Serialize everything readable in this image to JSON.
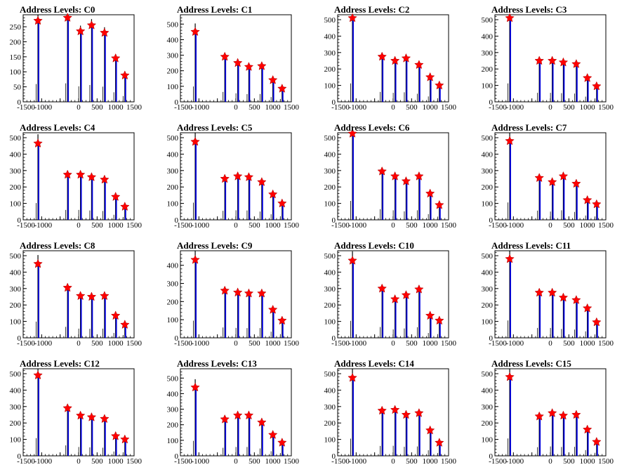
{
  "colors": {
    "blue": "#0000dd",
    "marker": "#ff0000",
    "axis": "#000000"
  },
  "chart_data": [
    {
      "type": "histogram",
      "title": "Address Levels: C0",
      "xlim": [
        -1500,
        1500
      ],
      "ylim": [
        0,
        290
      ],
      "xticks": [
        "-1500",
        "-1000",
        "0",
        "500",
        "1000",
        "1500"
      ],
      "yticks": [
        0,
        50,
        100,
        150,
        200,
        250
      ],
      "peaks": [
        [
          -1100,
          270
        ],
        [
          -300,
          280
        ],
        [
          50,
          235
        ],
        [
          350,
          255
        ],
        [
          700,
          230
        ],
        [
          1000,
          145
        ],
        [
          1250,
          88
        ]
      ]
    },
    {
      "type": "histogram",
      "title": "Address Levels: C1",
      "xlim": [
        -1500,
        1500
      ],
      "ylim": [
        0,
        560
      ],
      "xticks": [
        "-1500",
        "-1000",
        "0",
        "500",
        "1000",
        "1500"
      ],
      "yticks": [
        0,
        100,
        200,
        300,
        400,
        500
      ],
      "peaks": [
        [
          -1100,
          450
        ],
        [
          -300,
          290
        ],
        [
          50,
          250
        ],
        [
          350,
          225
        ],
        [
          700,
          230
        ],
        [
          1000,
          140
        ],
        [
          1250,
          85
        ]
      ]
    },
    {
      "type": "histogram",
      "title": "Address Levels: C2",
      "xlim": [
        -1500,
        1500
      ],
      "ylim": [
        0,
        530
      ],
      "xticks": [
        "-1500",
        "-1000",
        "0",
        "500",
        "1000",
        "1500"
      ],
      "yticks": [
        0,
        100,
        200,
        300,
        400,
        500
      ],
      "peaks": [
        [
          -1100,
          510
        ],
        [
          -300,
          275
        ],
        [
          50,
          250
        ],
        [
          350,
          265
        ],
        [
          700,
          225
        ],
        [
          1000,
          150
        ],
        [
          1250,
          100
        ]
      ]
    },
    {
      "type": "histogram",
      "title": "Address Levels: C3",
      "xlim": [
        -1500,
        1500
      ],
      "ylim": [
        0,
        530
      ],
      "xticks": [
        "-1500",
        "-1000",
        "0",
        "500",
        "1000",
        "1500"
      ],
      "yticks": [
        0,
        100,
        200,
        300,
        400,
        500
      ],
      "peaks": [
        [
          -1100,
          510
        ],
        [
          -300,
          250
        ],
        [
          50,
          250
        ],
        [
          350,
          240
        ],
        [
          700,
          230
        ],
        [
          1000,
          145
        ],
        [
          1250,
          95
        ]
      ]
    },
    {
      "type": "histogram",
      "title": "Address Levels: C4",
      "xlim": [
        -1500,
        1500
      ],
      "ylim": [
        0,
        530
      ],
      "xticks": [
        "-1500",
        "-1000",
        "0",
        "500",
        "1000",
        "1500"
      ],
      "yticks": [
        0,
        100,
        200,
        300,
        400,
        500
      ],
      "peaks": [
        [
          -1100,
          465
        ],
        [
          -300,
          275
        ],
        [
          50,
          275
        ],
        [
          350,
          260
        ],
        [
          700,
          245
        ],
        [
          1000,
          140
        ],
        [
          1250,
          80
        ]
      ]
    },
    {
      "type": "histogram",
      "title": "Address Levels: C5",
      "xlim": [
        -1500,
        1500
      ],
      "ylim": [
        0,
        530
      ],
      "xticks": [
        "-1500",
        "-1000",
        "0",
        "500",
        "1000",
        "1500"
      ],
      "yticks": [
        0,
        100,
        200,
        300,
        400,
        500
      ],
      "peaks": [
        [
          -1100,
          475
        ],
        [
          -300,
          250
        ],
        [
          50,
          265
        ],
        [
          350,
          260
        ],
        [
          700,
          230
        ],
        [
          1000,
          155
        ],
        [
          1250,
          100
        ]
      ]
    },
    {
      "type": "histogram",
      "title": "Address Levels: C6",
      "xlim": [
        -1500,
        1500
      ],
      "ylim": [
        0,
        530
      ],
      "xticks": [
        "-1500",
        "-1000",
        "0",
        "500",
        "1000",
        "1500"
      ],
      "yticks": [
        0,
        100,
        200,
        300,
        400,
        500
      ],
      "peaks": [
        [
          -1100,
          525
        ],
        [
          -300,
          295
        ],
        [
          50,
          265
        ],
        [
          350,
          235
        ],
        [
          700,
          265
        ],
        [
          1000,
          160
        ],
        [
          1250,
          90
        ]
      ]
    },
    {
      "type": "histogram",
      "title": "Address Levels: C7",
      "xlim": [
        -1500,
        1500
      ],
      "ylim": [
        0,
        530
      ],
      "xticks": [
        "-1500",
        "-1000",
        "0",
        "500",
        "1000",
        "1500"
      ],
      "yticks": [
        0,
        100,
        200,
        300,
        400,
        500
      ],
      "peaks": [
        [
          -1100,
          480
        ],
        [
          -300,
          255
        ],
        [
          50,
          230
        ],
        [
          350,
          265
        ],
        [
          700,
          220
        ],
        [
          1000,
          120
        ],
        [
          1250,
          95
        ]
      ]
    },
    {
      "type": "histogram",
      "title": "Address Levels: C8",
      "xlim": [
        -1500,
        1500
      ],
      "ylim": [
        0,
        530
      ],
      "xticks": [
        "-1500",
        "-1000",
        "0",
        "500",
        "1000",
        "1500"
      ],
      "yticks": [
        0,
        100,
        200,
        300,
        400,
        500
      ],
      "peaks": [
        [
          -1100,
          450
        ],
        [
          -300,
          305
        ],
        [
          50,
          255
        ],
        [
          350,
          250
        ],
        [
          700,
          255
        ],
        [
          1000,
          135
        ],
        [
          1250,
          80
        ]
      ]
    },
    {
      "type": "histogram",
      "title": "Address Levels: C9",
      "xlim": [
        -1500,
        1500
      ],
      "ylim": [
        0,
        480
      ],
      "xticks": [
        "-1500",
        "-1000",
        "0",
        "500",
        "1000",
        "1500"
      ],
      "yticks": [
        0,
        100,
        200,
        300,
        400
      ],
      "peaks": [
        [
          -1100,
          430
        ],
        [
          -300,
          260
        ],
        [
          50,
          250
        ],
        [
          350,
          245
        ],
        [
          700,
          245
        ],
        [
          1000,
          155
        ],
        [
          1250,
          95
        ]
      ]
    },
    {
      "type": "histogram",
      "title": "Address Levels: C10",
      "xlim": [
        -1500,
        1500
      ],
      "ylim": [
        0,
        530
      ],
      "xticks": [
        "-1500",
        "-1000",
        "0",
        "500",
        "1000",
        "1500"
      ],
      "yticks": [
        0,
        100,
        200,
        300,
        400,
        500
      ],
      "peaks": [
        [
          -1100,
          470
        ],
        [
          -300,
          300
        ],
        [
          50,
          235
        ],
        [
          350,
          260
        ],
        [
          700,
          295
        ],
        [
          1000,
          135
        ],
        [
          1250,
          105
        ]
      ]
    },
    {
      "type": "histogram",
      "title": "Address Levels: C11",
      "xlim": [
        -1500,
        1500
      ],
      "ylim": [
        0,
        530
      ],
      "xticks": [
        "-1500",
        "-1000",
        "0",
        "500",
        "1000",
        "1500"
      ],
      "yticks": [
        0,
        100,
        200,
        300,
        400,
        500
      ],
      "peaks": [
        [
          -1100,
          480
        ],
        [
          -300,
          275
        ],
        [
          50,
          275
        ],
        [
          350,
          245
        ],
        [
          700,
          230
        ],
        [
          1000,
          180
        ],
        [
          1250,
          95
        ]
      ]
    },
    {
      "type": "histogram",
      "title": "Address Levels: C12",
      "xlim": [
        -1500,
        1500
      ],
      "ylim": [
        0,
        530
      ],
      "xticks": [
        "-1500",
        "-1000",
        "0",
        "500",
        "1000",
        "1500"
      ],
      "yticks": [
        0,
        100,
        200,
        300,
        400,
        500
      ],
      "peaks": [
        [
          -1100,
          490
        ],
        [
          -300,
          290
        ],
        [
          50,
          245
        ],
        [
          350,
          235
        ],
        [
          700,
          225
        ],
        [
          1000,
          120
        ],
        [
          1250,
          100
        ]
      ]
    },
    {
      "type": "histogram",
      "title": "Address Levels: C13",
      "xlim": [
        -1500,
        1500
      ],
      "ylim": [
        0,
        560
      ],
      "xticks": [
        "-1500",
        "-1000",
        "0",
        "500",
        "1000",
        "1500"
      ],
      "yticks": [
        0,
        100,
        200,
        300,
        400,
        500
      ],
      "peaks": [
        [
          -1100,
          440
        ],
        [
          -300,
          235
        ],
        [
          50,
          260
        ],
        [
          350,
          260
        ],
        [
          700,
          215
        ],
        [
          1000,
          135
        ],
        [
          1250,
          85
        ]
      ]
    },
    {
      "type": "histogram",
      "title": "Address Levels: C14",
      "xlim": [
        -1500,
        1500
      ],
      "ylim": [
        0,
        530
      ],
      "xticks": [
        "-1500",
        "-1000",
        "0",
        "500",
        "1000",
        "1500"
      ],
      "yticks": [
        0,
        100,
        200,
        300,
        400,
        500
      ],
      "peaks": [
        [
          -1100,
          475
        ],
        [
          -300,
          275
        ],
        [
          50,
          280
        ],
        [
          350,
          250
        ],
        [
          700,
          260
        ],
        [
          1000,
          155
        ],
        [
          1250,
          80
        ]
      ]
    },
    {
      "type": "histogram",
      "title": "Address Levels: C15",
      "xlim": [
        -1500,
        1500
      ],
      "ylim": [
        0,
        530
      ],
      "xticks": [
        "-1500",
        "-1000",
        "0",
        "500",
        "1000",
        "1500"
      ],
      "yticks": [
        0,
        100,
        200,
        300,
        400,
        500
      ],
      "peaks": [
        [
          -1100,
          480
        ],
        [
          -300,
          240
        ],
        [
          50,
          260
        ],
        [
          350,
          245
        ],
        [
          700,
          250
        ],
        [
          1000,
          160
        ],
        [
          1250,
          85
        ]
      ]
    }
  ]
}
